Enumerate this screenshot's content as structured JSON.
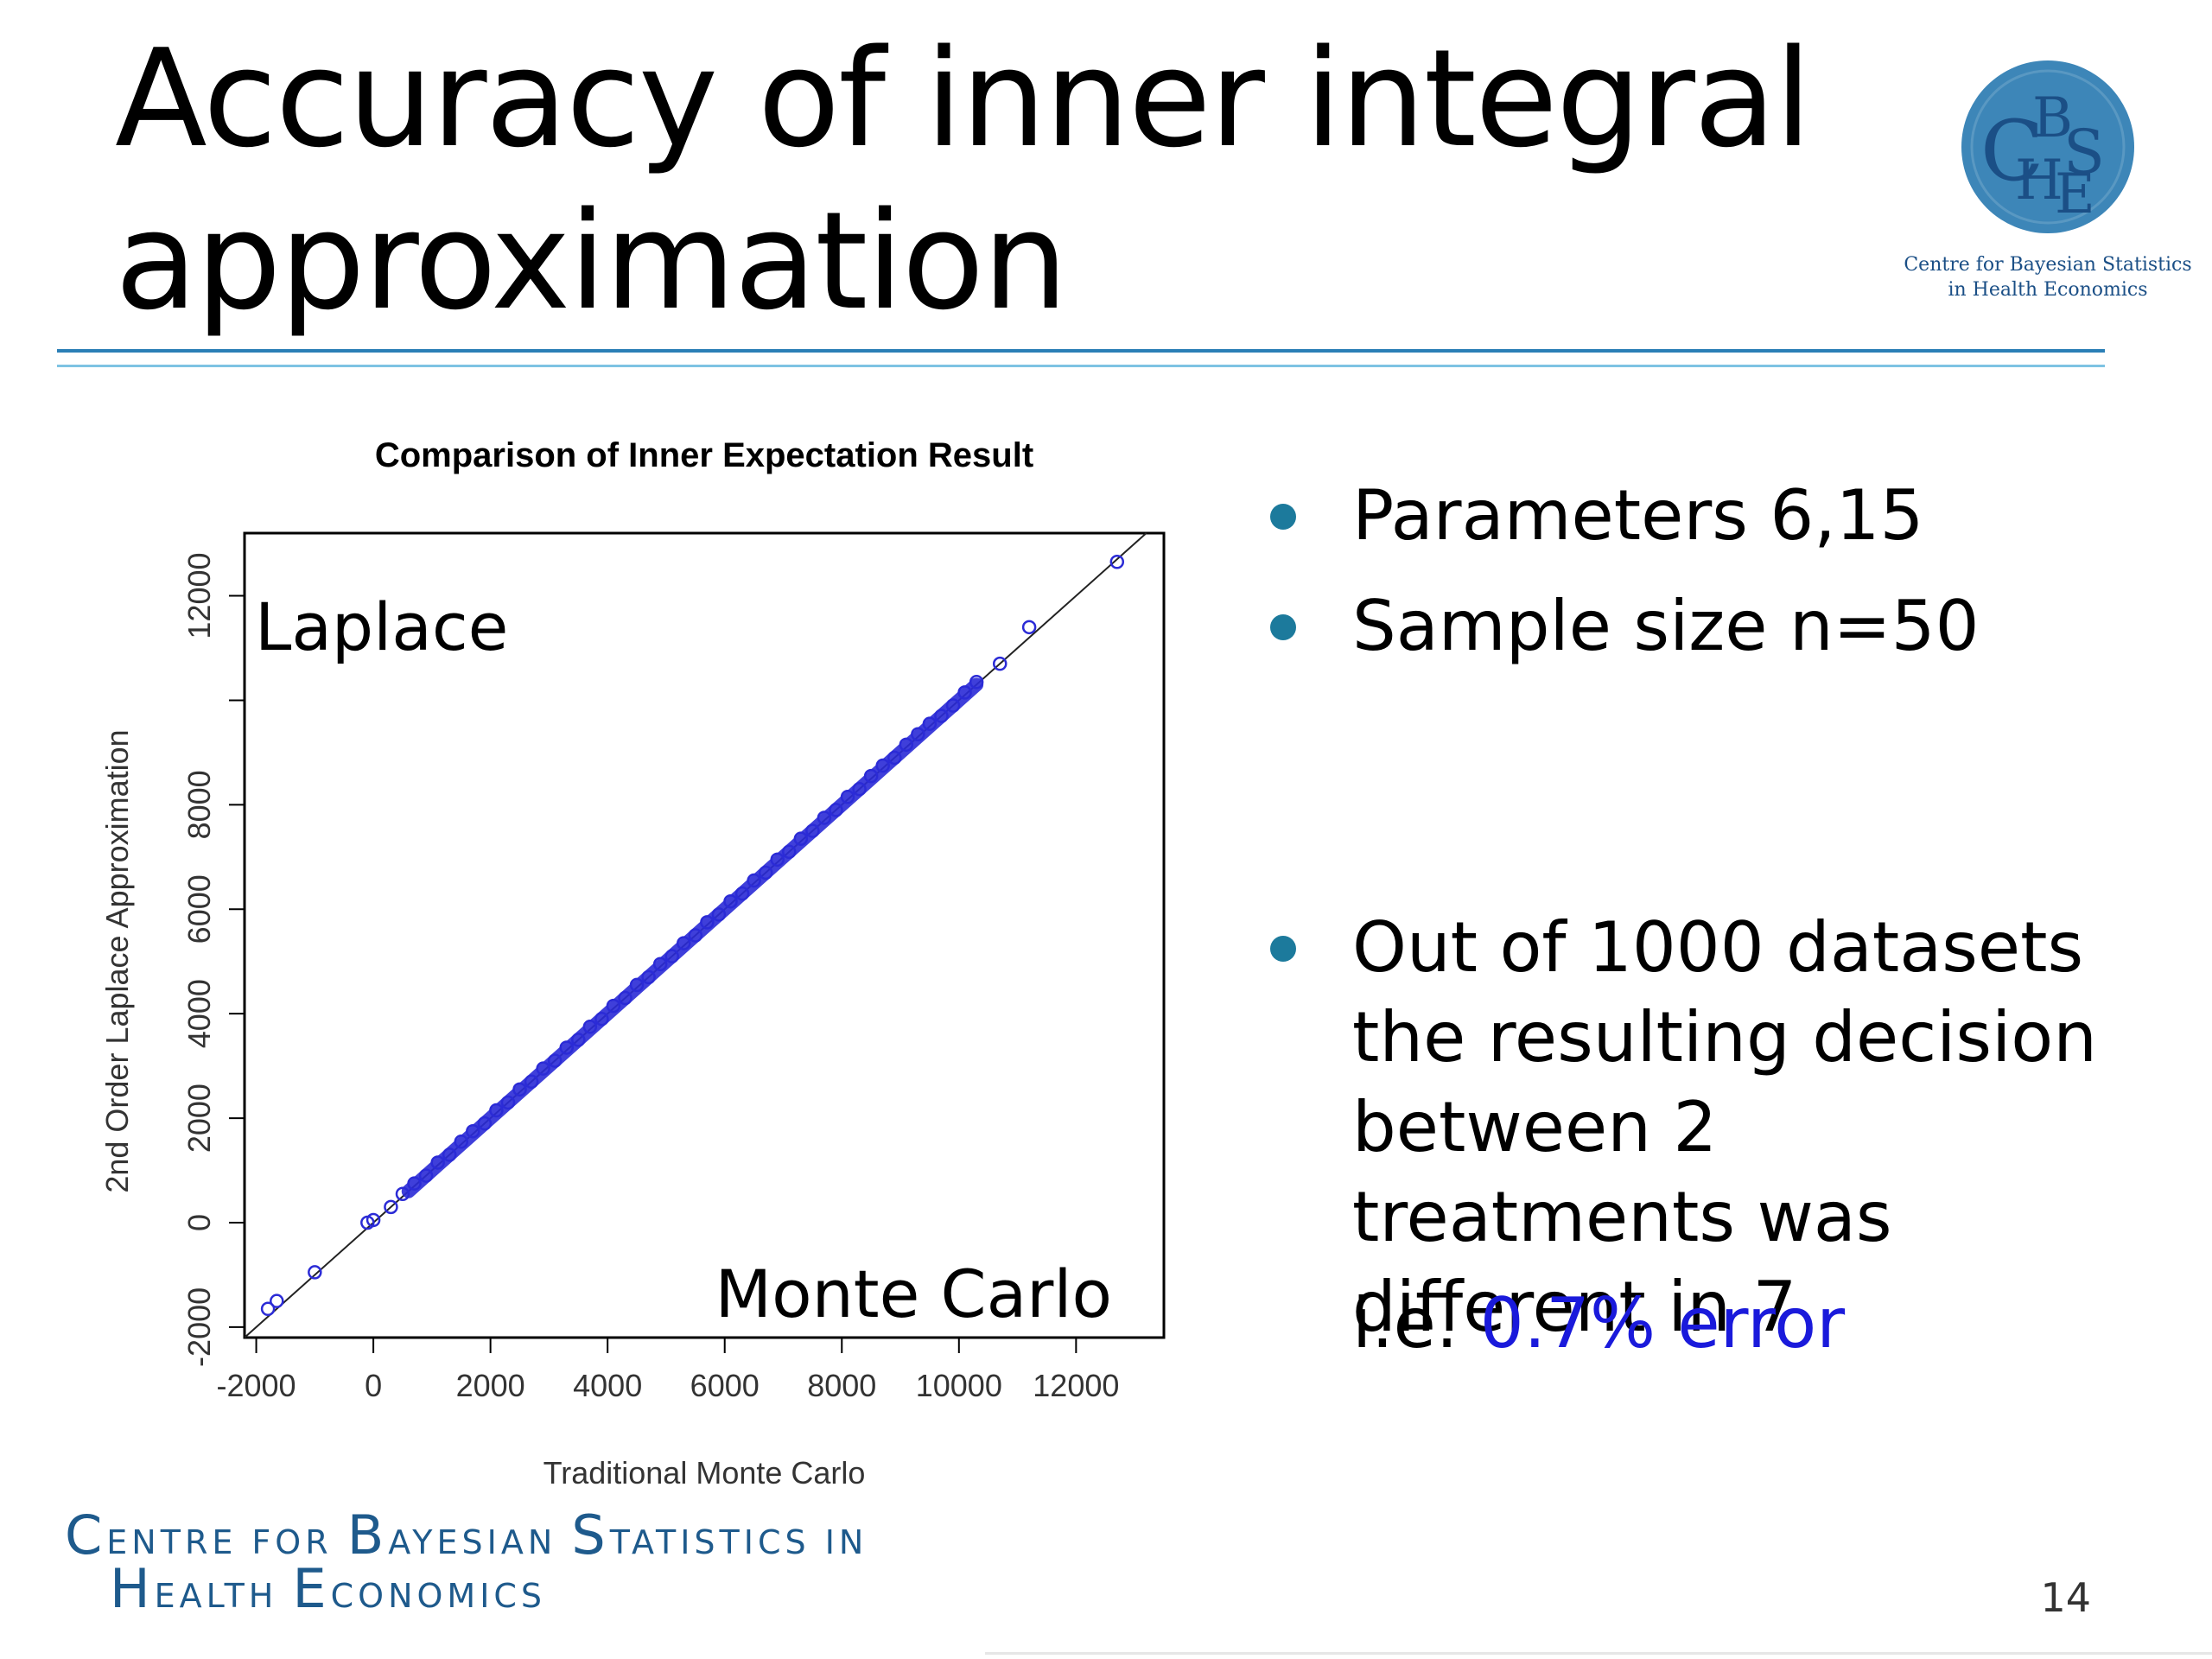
{
  "slide": {
    "title": "Accuracy of inner integral approximation",
    "page_number": "14"
  },
  "logo": {
    "badge_letters": [
      "C",
      "B",
      "S",
      "H",
      "E"
    ],
    "caption_line1": "Centre for Bayesian Statistics",
    "caption_line2": "in Health Economics"
  },
  "bullets": [
    {
      "text": "Parameters 6,15"
    },
    {
      "text": "Sample size n=50"
    },
    {
      "text": "Out of 1000 datasets the resulting decision between 2 treatments was different in 7"
    }
  ],
  "summary": {
    "prefix": "i.e. ",
    "highlight": "0.7% error"
  },
  "footer": {
    "line1": [
      {
        "cap": "C",
        "rest": "ENTRE FOR "
      },
      {
        "cap": "B",
        "rest": "AYESIAN "
      },
      {
        "cap": "S",
        "rest": "TATISTICS IN"
      }
    ],
    "line2": [
      {
        "cap": "H",
        "rest": "EALTH "
      },
      {
        "cap": "E",
        "rest": "CONOMICS"
      }
    ]
  },
  "colors": {
    "accent_rule_dark": "#2b7fb6",
    "accent_rule_light": "#7ec3e3",
    "logo_badge": "#3d86b8",
    "logo_letters": "#1b4f86",
    "bullet_dot": "#1c7a9c",
    "highlight_text": "#1a1adb",
    "footer_text": "#1e5a8c",
    "points": "#2b2bd6"
  },
  "chart_data": {
    "type": "scatter",
    "title": "Comparison of Inner Expectation Result",
    "xlabel": "Traditional Monte Carlo",
    "ylabel": "2nd Order Laplace Approximation",
    "xlim": [
      -2200,
      13500
    ],
    "ylim": [
      -2200,
      13200
    ],
    "xticks": [
      -2000,
      0,
      2000,
      4000,
      6000,
      8000,
      10000,
      12000
    ],
    "yticks": [
      -2000,
      0,
      2000,
      4000,
      6000,
      8000,
      10000,
      12000
    ],
    "ytick_labels_shown": [
      "-2000",
      "0",
      "2000",
      "4000",
      "6000",
      "8000",
      "",
      "12000"
    ],
    "annotations": [
      "Laplace",
      "Monte Carlo"
    ],
    "reference_line": {
      "type": "y=x"
    },
    "grid": false,
    "points": [
      {
        "x": -1800,
        "y": -1650
      },
      {
        "x": -1650,
        "y": -1500
      },
      {
        "x": -1000,
        "y": -950
      },
      {
        "x": -100,
        "y": 0
      },
      {
        "x": 0,
        "y": 50
      },
      {
        "x": 300,
        "y": 300
      },
      {
        "x": 500,
        "y": 550
      },
      {
        "x": 700,
        "y": 750
      },
      {
        "x": 900,
        "y": 900
      },
      {
        "x": 1100,
        "y": 1150
      },
      {
        "x": 1300,
        "y": 1300
      },
      {
        "x": 1500,
        "y": 1550
      },
      {
        "x": 1700,
        "y": 1750
      },
      {
        "x": 1900,
        "y": 1900
      },
      {
        "x": 2100,
        "y": 2150
      },
      {
        "x": 2300,
        "y": 2300
      },
      {
        "x": 2500,
        "y": 2550
      },
      {
        "x": 2700,
        "y": 2700
      },
      {
        "x": 2900,
        "y": 2950
      },
      {
        "x": 3100,
        "y": 3100
      },
      {
        "x": 3300,
        "y": 3350
      },
      {
        "x": 3500,
        "y": 3500
      },
      {
        "x": 3700,
        "y": 3750
      },
      {
        "x": 3900,
        "y": 3900
      },
      {
        "x": 4100,
        "y": 4150
      },
      {
        "x": 4300,
        "y": 4300
      },
      {
        "x": 4500,
        "y": 4550
      },
      {
        "x": 4700,
        "y": 4700
      },
      {
        "x": 4900,
        "y": 4950
      },
      {
        "x": 5100,
        "y": 5100
      },
      {
        "x": 5300,
        "y": 5350
      },
      {
        "x": 5500,
        "y": 5500
      },
      {
        "x": 5700,
        "y": 5750
      },
      {
        "x": 5900,
        "y": 5900
      },
      {
        "x": 6100,
        "y": 6150
      },
      {
        "x": 6300,
        "y": 6300
      },
      {
        "x": 6500,
        "y": 6550
      },
      {
        "x": 6700,
        "y": 6700
      },
      {
        "x": 6900,
        "y": 6950
      },
      {
        "x": 7100,
        "y": 7100
      },
      {
        "x": 7300,
        "y": 7350
      },
      {
        "x": 7500,
        "y": 7500
      },
      {
        "x": 7700,
        "y": 7750
      },
      {
        "x": 7900,
        "y": 7900
      },
      {
        "x": 8100,
        "y": 8150
      },
      {
        "x": 8300,
        "y": 8300
      },
      {
        "x": 8500,
        "y": 8550
      },
      {
        "x": 8700,
        "y": 8750
      },
      {
        "x": 8900,
        "y": 8900
      },
      {
        "x": 9100,
        "y": 9150
      },
      {
        "x": 9300,
        "y": 9350
      },
      {
        "x": 9500,
        "y": 9550
      },
      {
        "x": 9700,
        "y": 9700
      },
      {
        "x": 9900,
        "y": 9900
      },
      {
        "x": 10100,
        "y": 10150
      },
      {
        "x": 10300,
        "y": 10350
      },
      {
        "x": 10700,
        "y": 10700
      },
      {
        "x": 11200,
        "y": 11400
      },
      {
        "x": 12700,
        "y": 12650
      }
    ]
  }
}
